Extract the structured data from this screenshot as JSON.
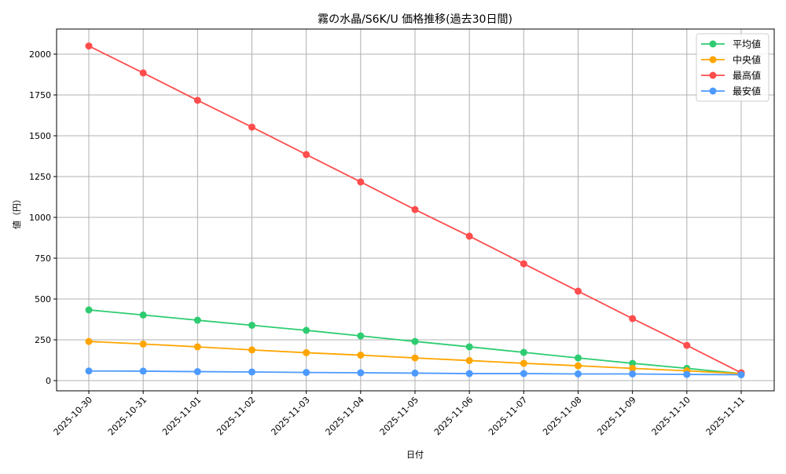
{
  "chart_data": {
    "type": "line",
    "title": "霧の水晶/S6K/U 価格推移(過去30日間)",
    "xlabel": "日付",
    "ylabel": "値（円）",
    "ylim": [
      -60,
      2150
    ],
    "yticks": [
      0,
      250,
      500,
      750,
      1000,
      1250,
      1500,
      1750,
      2000
    ],
    "grid": true,
    "legend_position": "upper right",
    "categories": [
      "2025-10-30",
      "2025-10-31",
      "2025-11-01",
      "2025-11-02",
      "2025-11-03",
      "2025-11-04",
      "2025-11-05",
      "2025-11-06",
      "2025-11-07",
      "2025-11-08",
      "2025-11-09",
      "2025-11-10",
      "2025-11-11"
    ],
    "series": [
      {
        "name": "平均値",
        "color": "#2ecc71",
        "values": [
          433,
          402,
          370,
          339,
          308,
          274,
          240,
          207,
          173,
          139,
          106,
          75,
          43
        ]
      },
      {
        "name": "中央値",
        "color": "#ffa500",
        "values": [
          240,
          224,
          207,
          188,
          171,
          156,
          139,
          123,
          106,
          91,
          75,
          60,
          43
        ]
      },
      {
        "name": "最高値",
        "color": "#ff4c4c",
        "values": [
          2050,
          1885,
          1717,
          1553,
          1385,
          1217,
          1048,
          885,
          716,
          548,
          380,
          216,
          48
        ]
      },
      {
        "name": "最安値",
        "color": "#4c9aff",
        "values": [
          59,
          58,
          55,
          53,
          50,
          48,
          46,
          43,
          43,
          41,
          41,
          38,
          36
        ]
      }
    ]
  }
}
